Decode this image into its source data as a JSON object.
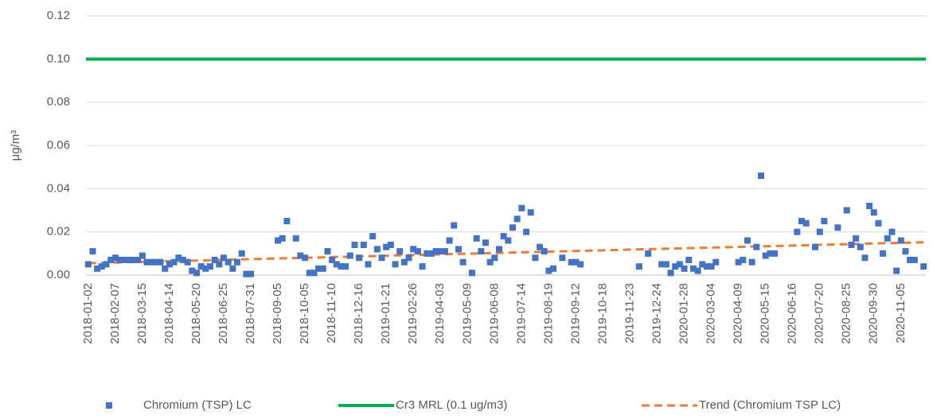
{
  "chart_data": {
    "type": "scatter",
    "ylabel": "μg/m³",
    "ylim": [
      0,
      0.12
    ],
    "yticks": [
      {
        "value": 0,
        "label": "0.00"
      },
      {
        "value": 0.02,
        "label": "0.02"
      },
      {
        "value": 0.04,
        "label": "0.04"
      },
      {
        "value": 0.06,
        "label": "0.06"
      },
      {
        "value": 0.08,
        "label": "0.08"
      },
      {
        "value": 0.1,
        "label": "0.10"
      },
      {
        "value": 0.12,
        "label": "0.12"
      }
    ],
    "grid": true,
    "categories": [
      "2018-01-02",
      null,
      null,
      null,
      null,
      null,
      "2018-02-07",
      null,
      null,
      null,
      null,
      null,
      "2018-03-15",
      null,
      null,
      null,
      null,
      null,
      "2018-04-14",
      null,
      null,
      null,
      null,
      null,
      "2018-05-20",
      null,
      null,
      null,
      null,
      null,
      "2018-06-25",
      null,
      null,
      null,
      null,
      null,
      "2018-07-31",
      null,
      null,
      null,
      null,
      null,
      "2018-09-05",
      null,
      null,
      null,
      null,
      null,
      "2018-10-05",
      null,
      null,
      null,
      null,
      null,
      "2018-11-10",
      null,
      null,
      null,
      null,
      null,
      "2018-12-16",
      null,
      null,
      null,
      null,
      null,
      "2019-01-21",
      null,
      null,
      null,
      null,
      null,
      "2019-02-26",
      null,
      null,
      null,
      null,
      null,
      "2019-04-03",
      null,
      null,
      null,
      null,
      null,
      "2019-05-09",
      null,
      null,
      null,
      null,
      null,
      "2019-06-08",
      null,
      null,
      null,
      null,
      null,
      "2019-07-14",
      null,
      null,
      null,
      null,
      null,
      "2019-08-19",
      null,
      null,
      null,
      null,
      null,
      "2019-09-12",
      null,
      null,
      null,
      null,
      null,
      "2019-10-18",
      null,
      null,
      null,
      null,
      null,
      "2019-11-23",
      null,
      null,
      null,
      null,
      null,
      "2019-12-24",
      null,
      null,
      null,
      null,
      null,
      "2020-01-28",
      null,
      null,
      null,
      null,
      null,
      "2020-03-04",
      null,
      null,
      null,
      null,
      null,
      "2020-04-09",
      null,
      null,
      null,
      null,
      null,
      "2020-05-15",
      null,
      null,
      null,
      null,
      null,
      "2020-06-16",
      null,
      null,
      null,
      null,
      null,
      "2020-07-20",
      null,
      null,
      null,
      null,
      null,
      "2020-08-25",
      null,
      null,
      null,
      null,
      null,
      "2020-09-30",
      null,
      null,
      null,
      null,
      null,
      "2020-11-05",
      null,
      null,
      null,
      null,
      null
    ],
    "series": [
      {
        "name": "Chromium (TSP) LC",
        "color": "#4472c4",
        "values": [
          0.005,
          0.011,
          0.003,
          0.004,
          0.005,
          0.007,
          0.008,
          0.007,
          0.007,
          0.007,
          0.007,
          0.007,
          0.009,
          0.006,
          0.006,
          0.006,
          0.006,
          0.003,
          0.005,
          0.006,
          0.008,
          0.007,
          0.006,
          0.002,
          0.001,
          0.004,
          0.003,
          0.004,
          0.007,
          0.005,
          0.008,
          0.006,
          0.003,
          0.006,
          0.01,
          0.0005,
          0.0005,
          null,
          null,
          null,
          null,
          null,
          0.016,
          0.017,
          0.025,
          null,
          0.017,
          0.009,
          0.008,
          0.001,
          0.001,
          0.003,
          0.003,
          0.011,
          0.007,
          0.005,
          0.004,
          0.004,
          0.009,
          0.014,
          0.008,
          0.014,
          0.005,
          0.018,
          0.012,
          0.008,
          0.013,
          0.014,
          0.005,
          0.011,
          0.006,
          0.008,
          0.012,
          0.011,
          0.004,
          0.01,
          0.01,
          0.011,
          0.011,
          0.011,
          0.016,
          0.023,
          0.012,
          0.006,
          null,
          0.001,
          0.017,
          0.011,
          0.015,
          0.006,
          0.008,
          0.012,
          0.018,
          0.016,
          0.022,
          0.026,
          0.031,
          0.02,
          0.029,
          0.008,
          0.013,
          0.011,
          0.002,
          0.003,
          null,
          0.008,
          null,
          0.006,
          0.006,
          0.005,
          null,
          null,
          null,
          null,
          null,
          null,
          null,
          null,
          null,
          null,
          null,
          null,
          0.004,
          null,
          0.01,
          null,
          null,
          0.005,
          0.005,
          0.001,
          0.004,
          0.005,
          0.003,
          0.007,
          0.003,
          0.002,
          0.005,
          0.004,
          0.004,
          0.006,
          null,
          null,
          null,
          null,
          0.006,
          0.007,
          0.016,
          0.006,
          0.013,
          0.046,
          0.009,
          0.01,
          0.01,
          null,
          null,
          null,
          null,
          0.02,
          0.025,
          0.024,
          null,
          0.013,
          0.02,
          0.025,
          null,
          null,
          0.022,
          null,
          0.03,
          0.014,
          0.017,
          0.013,
          0.008,
          0.032,
          0.029,
          0.024,
          0.01,
          0.017,
          0.02,
          0.002,
          0.016,
          0.011,
          0.007,
          0.007,
          null,
          0.004
        ]
      },
      {
        "name": "Cr3 MRL (0.1 ug/m3)",
        "color": "#00b050",
        "value": 0.1
      },
      {
        "name": "Trend (Chromium TSP LC)",
        "color": "#ed7d31",
        "trend_ends": [
          0.0055,
          0.0152
        ]
      }
    ]
  }
}
